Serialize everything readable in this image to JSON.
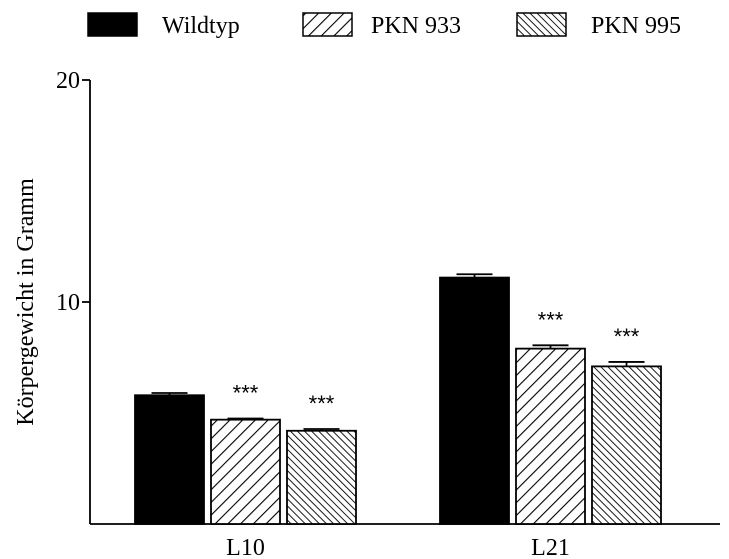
{
  "chart_data": {
    "type": "bar",
    "categories": [
      "L10",
      "L21"
    ],
    "series": [
      {
        "name": "Wildtyp",
        "values": [
          5.8,
          11.1
        ],
        "errors": [
          0.1,
          0.15
        ],
        "significance": [
          "",
          ""
        ],
        "fill": "solid"
      },
      {
        "name": "PKN 933",
        "values": [
          4.7,
          7.9
        ],
        "errors": [
          0.05,
          0.15
        ],
        "significance": [
          "***",
          "***"
        ],
        "fill": "hatch-forward"
      },
      {
        "name": "PKN 995",
        "values": [
          4.2,
          7.1
        ],
        "errors": [
          0.08,
          0.2
        ],
        "significance": [
          "***",
          "***"
        ],
        "fill": "hatch-backward"
      }
    ],
    "title": "",
    "xlabel": "",
    "ylabel": "Körpergewicht in Gramm",
    "ylim": [
      0,
      20
    ],
    "yticks": [
      "10",
      "20"
    ],
    "legend_position": "top",
    "grid": false,
    "colors": {
      "bar": "#000000",
      "background": "#ffffff"
    }
  }
}
